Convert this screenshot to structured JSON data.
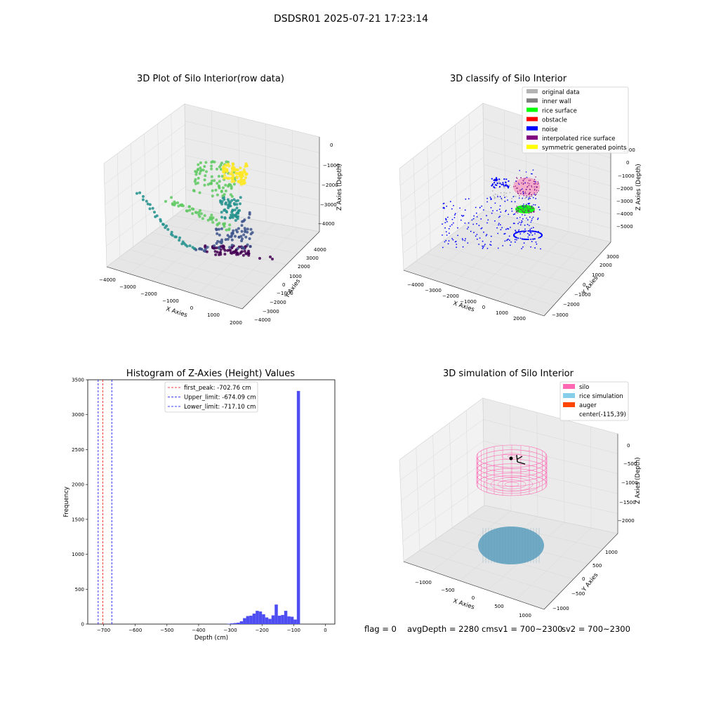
{
  "figure": {
    "suptitle": "DSDSR01 2025-07-21 17:23:14",
    "footer": {
      "flag": "flag = 0",
      "avg_depth": "avgDepth = 2280 cmsv1 = 700~2300",
      "sv2": "sv2 = 700~2300"
    }
  },
  "chart_data": [
    {
      "type": "scatter",
      "projection": "3d",
      "title": "3D Plot of Silo Interior(row data)",
      "xlabel": "X Axies",
      "ylabel": "Y Axies",
      "zlabel": "Z Axies (Depth)",
      "xticks": [
        "−4000",
        "−3000",
        "−2000",
        "−1000",
        "0",
        "1000",
        "2000"
      ],
      "yticks": [
        "−4000",
        "−3000",
        "−2000",
        "−1000",
        "0",
        "1000",
        "2000",
        "3000",
        "4000"
      ],
      "zticks": [
        "−4000",
        "−3000",
        "−2000",
        "−1000",
        "0"
      ],
      "colormap": [
        "#440154",
        "#3b528b",
        "#21918c",
        "#5ec962",
        "#fde725"
      ],
      "grid": true
    },
    {
      "type": "scatter",
      "projection": "3d",
      "title": "3D classify of Silo Interior",
      "xlabel": "X Axies",
      "ylabel": "Y Axies",
      "zlabel": "Z Axies (Depth)",
      "xticks": [
        "−4000",
        "−3000",
        "−2000",
        "−1000",
        "0",
        "1000",
        "2000"
      ],
      "yticks": [
        "−3000",
        "−2000",
        "−1000",
        "0",
        "1000",
        "2000",
        "3000"
      ],
      "zticks": [
        "−5000",
        "−4000",
        "−3000",
        "−2000",
        "−1000",
        "0",
        "1000",
        "2000"
      ],
      "legend_position": "top-right",
      "legend": [
        {
          "label": "original data",
          "color": "#b3b3b3"
        },
        {
          "label": "inner wall",
          "color": "#808080"
        },
        {
          "label": "rice surface",
          "color": "#00ff00"
        },
        {
          "label": "obstacle",
          "color": "#ff0000"
        },
        {
          "label": "noise",
          "color": "#0000ff"
        },
        {
          "label": "interpolated rice surface",
          "color": "#800080"
        },
        {
          "label": "symmetric generated points",
          "color": "#ffff00"
        }
      ],
      "grid": true
    },
    {
      "type": "bar",
      "title": "Histogram of Z-Axies (Height) Values",
      "xlabel": "Depth (cm)",
      "ylabel": "Frequency",
      "xlim": [
        -750,
        30
      ],
      "ylim": [
        0,
        3500
      ],
      "xticks": [
        -700,
        -600,
        -500,
        -400,
        -300,
        -200,
        -100,
        0
      ],
      "yticks": [
        0,
        500,
        1000,
        1500,
        2000,
        2500,
        3000,
        3500
      ],
      "bin_width": 10,
      "bar_color": "#4d4df2",
      "bins": [
        {
          "x": -310,
          "value": 5
        },
        {
          "x": -300,
          "value": 10
        },
        {
          "x": -290,
          "value": 15
        },
        {
          "x": -280,
          "value": 20
        },
        {
          "x": -270,
          "value": 40
        },
        {
          "x": -260,
          "value": 85
        },
        {
          "x": -250,
          "value": 115
        },
        {
          "x": -240,
          "value": 120
        },
        {
          "x": -230,
          "value": 150
        },
        {
          "x": -220,
          "value": 190
        },
        {
          "x": -210,
          "value": 180
        },
        {
          "x": -200,
          "value": 140
        },
        {
          "x": -190,
          "value": 95
        },
        {
          "x": -180,
          "value": 75
        },
        {
          "x": -170,
          "value": 125
        },
        {
          "x": -160,
          "value": 280
        },
        {
          "x": -150,
          "value": 120
        },
        {
          "x": -140,
          "value": 130
        },
        {
          "x": -130,
          "value": 190
        },
        {
          "x": -120,
          "value": 110
        },
        {
          "x": -110,
          "value": 105
        },
        {
          "x": -100,
          "value": 65
        },
        {
          "x": -90,
          "value": 3340
        }
      ],
      "reference_lines": [
        {
          "label": "first_peak: -702.76 cm",
          "x": -702.76,
          "color": "#ff0000"
        },
        {
          "label": "Upper_limit: -674.09 cm",
          "x": -674.09,
          "color": "#0000ff"
        },
        {
          "label": "Lower_limit: -717.10 cm",
          "x": -717.1,
          "color": "#0000ff"
        }
      ],
      "legend_position": "top-center"
    },
    {
      "type": "scatter",
      "projection": "3d",
      "title": "3D simulation of Silo Interior",
      "xlabel": "X Axies",
      "ylabel": "Y Axies",
      "zlabel": "Z Axies (Depth)",
      "xticks": [
        "−1000",
        "−500",
        "0",
        "500",
        "1000"
      ],
      "yticks": [
        "−1000",
        "−500",
        "0",
        "500",
        "1000"
      ],
      "zticks": [
        "−2000",
        "−1500",
        "−1000",
        "−500",
        "0"
      ],
      "legend_position": "top-right",
      "legend": [
        {
          "label": "silo",
          "color": "#ff69b4",
          "swatch": true
        },
        {
          "label": "rice simulation",
          "color": "#87ceeb",
          "swatch": true
        },
        {
          "label": "auger",
          "color": "#ff4500",
          "swatch": true
        },
        {
          "label": "center(-115,39)",
          "color": "#ffffff",
          "swatch": false
        }
      ],
      "grid": true
    }
  ]
}
